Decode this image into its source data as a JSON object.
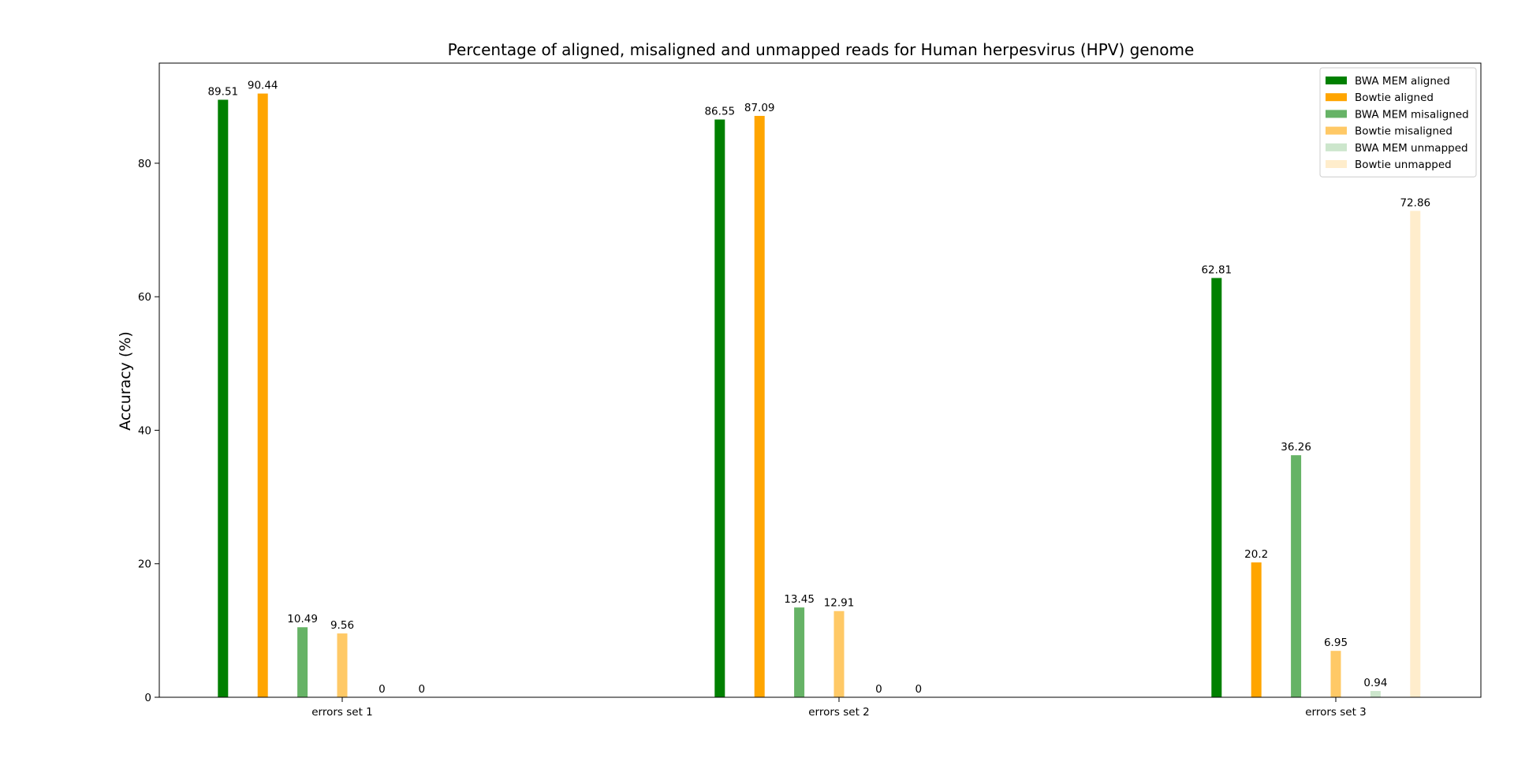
{
  "chart_data": {
    "type": "bar",
    "title": "Percentage of aligned, misaligned and unmapped reads for Human herpesvirus (HPV) genome",
    "xlabel": "",
    "ylabel": "Accuracy (%)",
    "ylim": [
      0,
      95
    ],
    "yticks": [
      0,
      20,
      40,
      60,
      80
    ],
    "grid": false,
    "legend_position": "top-right",
    "categories": [
      "errors set 1",
      "errors set 2",
      "errors set 3"
    ],
    "series": [
      {
        "name": "BWA MEM aligned",
        "color": "#008000",
        "opacity": 1.0,
        "values": [
          89.51,
          86.55,
          62.81
        ],
        "labels": [
          "89.51",
          "86.55",
          "62.81"
        ]
      },
      {
        "name": "Bowtie aligned",
        "color": "#ffa500",
        "opacity": 1.0,
        "values": [
          90.44,
          87.09,
          20.2
        ],
        "labels": [
          "90.44",
          "87.09",
          "20.2"
        ]
      },
      {
        "name": "BWA MEM misaligned",
        "color": "#008000",
        "opacity": 0.6,
        "values": [
          10.49,
          13.45,
          36.26
        ],
        "labels": [
          "10.49",
          "13.45",
          "36.26"
        ]
      },
      {
        "name": "Bowtie misaligned",
        "color": "#ffa500",
        "opacity": 0.6,
        "values": [
          9.56,
          12.91,
          6.95
        ],
        "labels": [
          "9.56",
          "12.91",
          "6.95"
        ]
      },
      {
        "name": "BWA MEM unmapped",
        "color": "#008000",
        "opacity": 0.2,
        "values": [
          0,
          0,
          0.94
        ],
        "labels": [
          "0",
          "0",
          "0.94"
        ]
      },
      {
        "name": "Bowtie unmapped",
        "color": "#ffa500",
        "opacity": 0.2,
        "values": [
          0,
          0,
          72.86
        ],
        "labels": [
          "0",
          "0",
          "72.86"
        ]
      }
    ]
  }
}
